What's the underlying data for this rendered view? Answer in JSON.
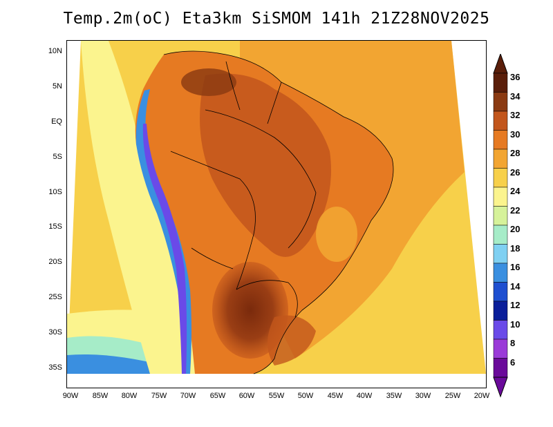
{
  "title": "Temp.2m(oC) Eta3km SiSMOM 141h 21Z28NOV2025",
  "y_axis_labels": [
    "10N",
    "5N",
    "EQ",
    "5S",
    "10S",
    "15S",
    "20S",
    "25S",
    "30S",
    "35S"
  ],
  "x_axis_labels": [
    "90W",
    "85W",
    "80W",
    "75W",
    "70W",
    "65W",
    "60W",
    "55W",
    "50W",
    "45W",
    "40W",
    "35W",
    "30W",
    "25W",
    "20W"
  ],
  "colorbar": {
    "labels": [
      "36",
      "34",
      "32",
      "30",
      "28",
      "26",
      "24",
      "22",
      "20",
      "18",
      "16",
      "14",
      "12",
      "10",
      "8",
      "6"
    ],
    "colors": [
      "#5a1e0a",
      "#8a3a12",
      "#c2561c",
      "#e67a22",
      "#f2a532",
      "#f7d04a",
      "#fbf48e",
      "#d6f29a",
      "#a6ecc8",
      "#7fd0f2",
      "#3a8fe0",
      "#1e4fd0",
      "#0a1e9a",
      "#6a4ae8",
      "#9a3ad8",
      "#6a0a9a"
    ]
  }
}
